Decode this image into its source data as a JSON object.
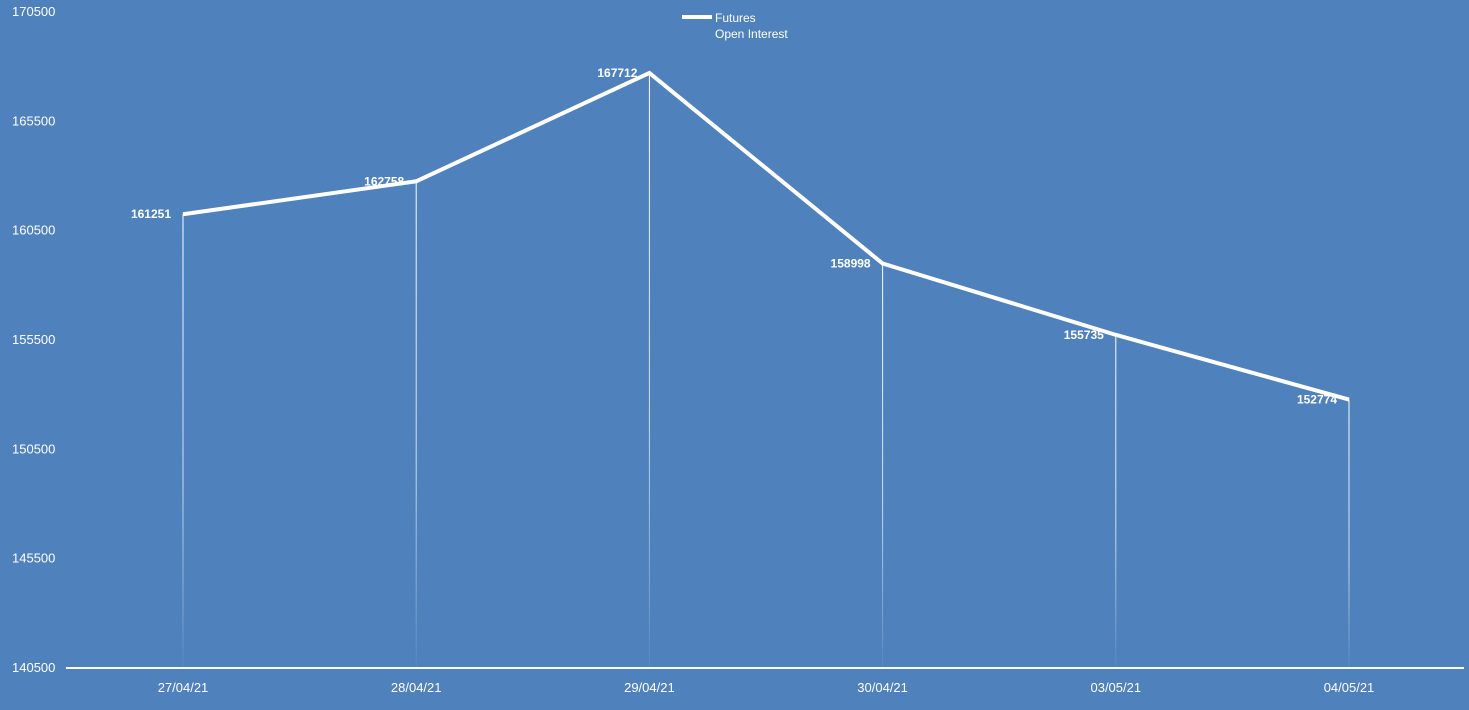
{
  "chart_data": {
    "type": "line",
    "title": "",
    "xlabel": "",
    "ylabel": "",
    "categories": [
      "27/04/21",
      "28/04/21",
      "29/04/21",
      "30/04/21",
      "03/05/21",
      "04/05/21"
    ],
    "series": [
      {
        "name_lines": [
          "Futures",
          "Open Interest"
        ],
        "values": [
          161251,
          162758,
          167712,
          158998,
          155735,
          152774
        ]
      }
    ],
    "ylim": [
      140500,
      170500
    ],
    "yticks": [
      140500,
      145500,
      150500,
      155500,
      160500,
      165500,
      170500
    ],
    "grid": false,
    "drop_lines": true,
    "data_labels": true,
    "legend_position": "top-center",
    "colors": {
      "background": "#4f81bd",
      "line": "#ffffff",
      "text": "#ffffff"
    }
  }
}
